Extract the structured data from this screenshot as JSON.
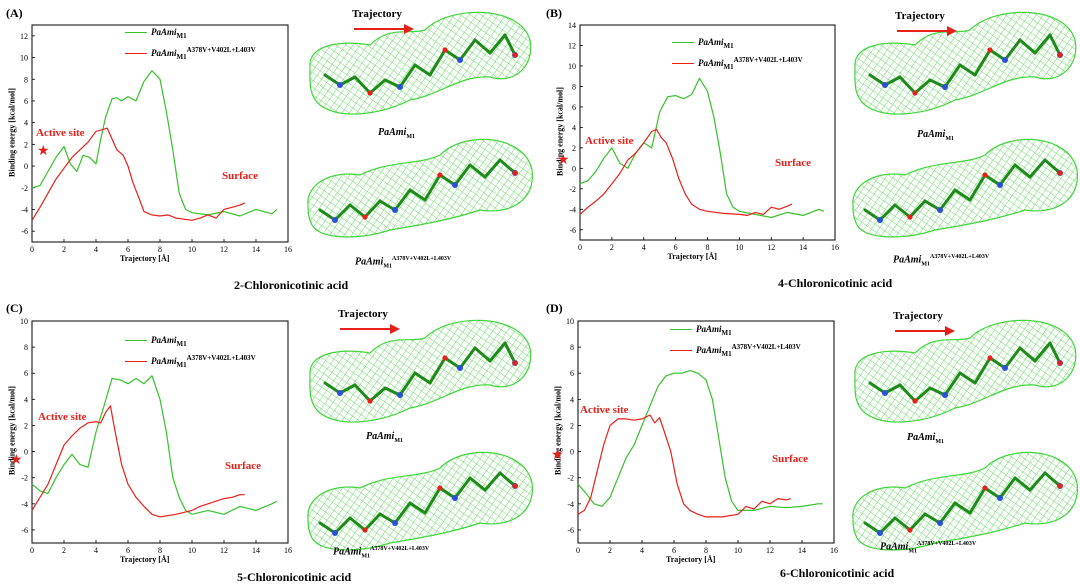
{
  "colors": {
    "wild": "#35c22a",
    "mutant": "#e8201a",
    "mesh": "#3fd43a",
    "annot": "#e8201a"
  },
  "panels": [
    {
      "label": "(A)",
      "caption": "2-Chloronicotinic acid",
      "xlabel": "Trajectory [Å]",
      "ylabel": "Binding energy [kcal/mol]",
      "active_site": "Active site",
      "surface": "Surface",
      "trajectory": "Trajectory",
      "legend": {
        "wild_name": "PaAmi",
        "wild_sub": "M1",
        "mut_name": "PaAmi",
        "mut_sub": "M1",
        "mut_sup": "A378V+V402L+L403V"
      },
      "mol_label_top": {
        "name": "PaAmi",
        "sub": "M1"
      },
      "mol_label_bottom": {
        "name": "PaAmi",
        "sub": "M1",
        "sup": "A378V+V402L+L403V"
      },
      "chart_data": {
        "type": "line",
        "xlim": [
          0,
          16
        ],
        "ylim": [
          -7,
          13
        ],
        "xticks": [
          0,
          2,
          4,
          6,
          8,
          10,
          12,
          14,
          16
        ],
        "yticks": [
          -6,
          -4,
          -2,
          0,
          2,
          4,
          6,
          8,
          10,
          12
        ],
        "series": [
          {
            "name": "PaAmi M1",
            "color": "#35c22a",
            "x": [
              0,
              0.5,
              1,
              1.5,
              2,
              2.4,
              2.8,
              3.2,
              3.6,
              4,
              4.3,
              4.6,
              5,
              5.3,
              5.6,
              6,
              6.5,
              7,
              7.5,
              8,
              8.4,
              8.8,
              9.2,
              9.6,
              10,
              11,
              12,
              13,
              14,
              15,
              15.3
            ],
            "values": [
              -2,
              -1.8,
              -0.5,
              0.8,
              1.8,
              0.2,
              -0.5,
              1,
              0.8,
              0.2,
              2.5,
              4.5,
              6.2,
              6.3,
              6.0,
              6.4,
              6.0,
              7.8,
              8.8,
              8,
              5,
              1.5,
              -2.5,
              -4,
              -4.3,
              -4.5,
              -4.2,
              -4.6,
              -4,
              -4.4,
              -4
            ]
          },
          {
            "name": "PaAmi M1 A378V+V402L+L403V",
            "color": "#e8201a",
            "x": [
              0,
              0.5,
              1,
              1.5,
              2,
              2.5,
              3,
              3.5,
              4,
              4.3,
              4.7,
              5,
              5.3,
              5.7,
              6,
              6.3,
              6.7,
              7,
              7.5,
              8,
              8.5,
              9,
              9.5,
              10,
              10.5,
              11,
              11.5,
              12,
              12.5,
              13,
              13.3
            ],
            "values": [
              -5,
              -3.8,
              -2.5,
              -1.2,
              -0.2,
              0.8,
              1.5,
              2.2,
              3.2,
              3.3,
              3.5,
              2.5,
              1.5,
              1.0,
              0,
              -1.5,
              -3,
              -4.2,
              -4.5,
              -4.6,
              -4.5,
              -4.8,
              -4.9,
              -5,
              -4.8,
              -4.5,
              -4.8,
              -4,
              -3.8,
              -3.6,
              -3.4
            ]
          }
        ]
      }
    },
    {
      "label": "(B)",
      "caption": "4-Chloronicotinic acid",
      "xlabel": "Trajectory [Å]",
      "ylabel": "Binding energy [kcal/mol]",
      "active_site": "Active site",
      "surface": "Surface",
      "trajectory": "Trajectory",
      "legend": {
        "wild_name": "PaAmi",
        "wild_sub": "M1",
        "mut_name": "PaAmi",
        "mut_sub": "M1",
        "mut_sup": "A378V+V402L+L403V"
      },
      "mol_label_top": {
        "name": "PaAmi",
        "sub": "M1"
      },
      "mol_label_bottom": {
        "name": "PaAmi",
        "sub": "M1",
        "sup": "A378V+V402L+L403V"
      },
      "chart_data": {
        "type": "line",
        "xlim": [
          0,
          16
        ],
        "ylim": [
          -7,
          14
        ],
        "xticks": [
          0,
          2,
          4,
          6,
          8,
          10,
          12,
          14,
          16
        ],
        "yticks": [
          -6,
          -4,
          -2,
          0,
          2,
          4,
          6,
          8,
          10,
          12,
          14
        ],
        "series": [
          {
            "name": "PaAmi M1",
            "color": "#35c22a",
            "x": [
              0,
              0.5,
              1,
              1.5,
              2,
              2.5,
              3,
              3.5,
              4,
              4.5,
              5,
              5.5,
              6,
              6.5,
              7,
              7.5,
              8,
              8.4,
              8.8,
              9.2,
              9.6,
              10,
              11,
              12,
              13,
              14,
              15,
              15.3
            ],
            "values": [
              -1.5,
              -1.2,
              -0.3,
              1,
              2,
              0.5,
              0,
              1.5,
              2.5,
              2,
              5.5,
              7,
              7.1,
              6.8,
              7.2,
              8.8,
              7.5,
              5,
              1.5,
              -2.5,
              -3.8,
              -4.2,
              -4.5,
              -4.8,
              -4.3,
              -4.6,
              -4,
              -4.2
            ]
          },
          {
            "name": "PaAmi M1 A378V+V402L+L403V",
            "color": "#e8201a",
            "x": [
              0,
              0.5,
              1,
              1.5,
              2,
              2.5,
              3,
              3.5,
              4,
              4.5,
              4.8,
              5.1,
              5.4,
              5.8,
              6.2,
              6.6,
              7,
              7.5,
              8,
              9,
              10,
              10.5,
              11,
              11.5,
              12,
              12.5,
              13,
              13.3
            ],
            "values": [
              -4.5,
              -3.8,
              -3.2,
              -2.5,
              -1.5,
              -0.5,
              0.8,
              1.5,
              2.5,
              3.6,
              3.8,
              3.0,
              2.5,
              1.0,
              -1,
              -2.5,
              -3.5,
              -4,
              -4.2,
              -4.4,
              -4.5,
              -4.6,
              -4.3,
              -4.5,
              -3.8,
              -4,
              -3.7,
              -3.5
            ]
          }
        ]
      }
    },
    {
      "label": "(C)",
      "caption": "5-Chloronicotinic acid",
      "xlabel": "Trajectory [Å]",
      "ylabel": "Binding energy [kcal/mol]",
      "active_site": "Active site",
      "surface": "Surface",
      "trajectory": "Trajectory",
      "legend": {
        "wild_name": "PaAmi",
        "wild_sub": "M1",
        "mut_name": "PaAmi",
        "mut_sub": "M1",
        "mut_sup": "A378V+V402L+L403V"
      },
      "mol_label_top": {
        "name": "PaAmi",
        "sub": "M1"
      },
      "mol_label_bottom": {
        "name": "PaAmi",
        "sub": "M1",
        "sup": "A378V+V402L+L403V"
      },
      "chart_data": {
        "type": "line",
        "xlim": [
          0,
          16
        ],
        "ylim": [
          -7,
          10
        ],
        "xticks": [
          0,
          2,
          4,
          6,
          8,
          10,
          12,
          14,
          16
        ],
        "yticks": [
          -6,
          -4,
          -2,
          0,
          2,
          4,
          6,
          8,
          10
        ],
        "series": [
          {
            "name": "PaAmi M1",
            "color": "#35c22a",
            "x": [
              0,
              0.5,
              1,
              1.5,
              2,
              2.5,
              3,
              3.5,
              4,
              4.5,
              5,
              5.5,
              6,
              6.5,
              7,
              7.5,
              8,
              8.4,
              8.8,
              9.2,
              9.6,
              10,
              11,
              12,
              13,
              14,
              15,
              15.3
            ],
            "values": [
              -2.5,
              -3,
              -3.2,
              -2,
              -1,
              -0.2,
              -1,
              -1.2,
              1.5,
              3.5,
              5.6,
              5.5,
              5.2,
              5.6,
              5.2,
              5.8,
              4,
              1.5,
              -2,
              -3.5,
              -4.5,
              -4.8,
              -4.5,
              -4.8,
              -4.2,
              -4.5,
              -4,
              -3.8
            ]
          },
          {
            "name": "PaAmi M1 A378V+V402L+L403V",
            "color": "#e8201a",
            "x": [
              0,
              0.5,
              1,
              1.5,
              2,
              2.5,
              3,
              3.5,
              4,
              4.3,
              4.6,
              4.9,
              5.2,
              5.6,
              6,
              6.5,
              7,
              7.5,
              8,
              9,
              10,
              10.5,
              11,
              11.5,
              12,
              12.5,
              13,
              13.3
            ],
            "values": [
              -4.5,
              -3.5,
              -2.5,
              -1,
              0.5,
              1.2,
              1.8,
              2.2,
              2.3,
              2.2,
              3.0,
              3.5,
              1.5,
              -1,
              -2.5,
              -3.5,
              -4.2,
              -4.8,
              -5,
              -4.8,
              -4.5,
              -4.2,
              -4,
              -3.8,
              -3.6,
              -3.5,
              -3.3,
              -3.3
            ]
          }
        ]
      }
    },
    {
      "label": "(D)",
      "caption": "6-Chloronicotinic acid",
      "xlabel": "Trajectory [Å]",
      "ylabel": "Binding energy [kcal/mol]",
      "active_site": "Active site",
      "surface": "Surface",
      "trajectory": "Trajectory",
      "legend": {
        "wild_name": "PaAmi",
        "wild_sub": "M1",
        "mut_name": "PaAmi",
        "mut_sub": "M1",
        "mut_sup": "A378V+V402L+L403V"
      },
      "mol_label_top": {
        "name": "PaAmi",
        "sub": "M1"
      },
      "mol_label_bottom": {
        "name": "PaAmi",
        "sub": "M1",
        "sup": "A378V+V402L+L403V"
      },
      "chart_data": {
        "type": "line",
        "xlim": [
          0,
          16
        ],
        "ylim": [
          -7,
          10
        ],
        "xticks": [
          0,
          2,
          4,
          6,
          8,
          10,
          12,
          14,
          16
        ],
        "yticks": [
          -6,
          -4,
          -2,
          0,
          2,
          4,
          6,
          8,
          10
        ],
        "series": [
          {
            "name": "PaAmi M1",
            "color": "#35c22a",
            "x": [
              0,
              0.5,
              1,
              1.5,
              2,
              2.5,
              3,
              3.5,
              4,
              4.5,
              5,
              5.5,
              6,
              6.5,
              7,
              7.5,
              8,
              8.4,
              8.8,
              9.2,
              9.6,
              10,
              11,
              12,
              13,
              14,
              15,
              15.3
            ],
            "values": [
              -2.5,
              -3.2,
              -4,
              -4.2,
              -3.5,
              -2,
              -0.5,
              0.5,
              2,
              3.5,
              5,
              5.8,
              6,
              6,
              6.2,
              6,
              5.5,
              4,
              1,
              -2,
              -3.8,
              -4.5,
              -4.5,
              -4.2,
              -4.3,
              -4.2,
              -4,
              -4
            ]
          },
          {
            "name": "PaAmi M1 A378V+V402L+L403V",
            "color": "#e8201a",
            "x": [
              0,
              0.4,
              0.8,
              1.2,
              1.6,
              2,
              2.5,
              3,
              3.5,
              4,
              4.5,
              4.8,
              5.1,
              5.4,
              5.8,
              6.2,
              6.6,
              7,
              7.5,
              8,
              9,
              10,
              10.5,
              11,
              11.5,
              12,
              12.5,
              13,
              13.3
            ],
            "values": [
              -4.8,
              -4.5,
              -3.5,
              -1.5,
              0.5,
              2,
              2.5,
              2.5,
              2.4,
              2.5,
              2.8,
              2.2,
              2.6,
              1.5,
              0,
              -2.5,
              -4,
              -4.5,
              -4.8,
              -5,
              -5,
              -4.8,
              -4.2,
              -4.4,
              -3.8,
              -4,
              -3.6,
              -3.7,
              -3.6
            ]
          }
        ]
      }
    }
  ]
}
